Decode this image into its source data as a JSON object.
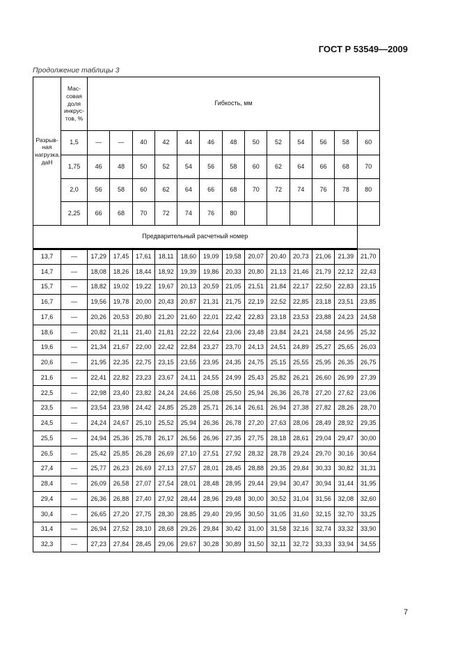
{
  "document_id": "ГОСТ Р 53549—2009",
  "caption": "Продолжение таблицы 3",
  "page_number": "7",
  "table": {
    "row_header": "Разрыв-ная нагрузка, даН",
    "mass_fraction_header": "Мас-совая доля инкрус-тов, %",
    "flexibility_header": "Гибкость, мм",
    "estimate_header": "Предварительный расчетный номер",
    "flexibility_rows": [
      {
        "fraction": "1,5",
        "values": [
          "—",
          "—",
          "40",
          "42",
          "44",
          "46",
          "48",
          "50",
          "52",
          "54",
          "56",
          "58",
          "60"
        ]
      },
      {
        "fraction": "1,75",
        "values": [
          "46",
          "48",
          "50",
          "52",
          "54",
          "56",
          "58",
          "60",
          "62",
          "64",
          "66",
          "68",
          "70"
        ]
      },
      {
        "fraction": "2,0",
        "values": [
          "56",
          "58",
          "60",
          "62",
          "64",
          "66",
          "68",
          "70",
          "72",
          "74",
          "76",
          "78",
          "80"
        ]
      },
      {
        "fraction": "2,25",
        "values": [
          "66",
          "68",
          "70",
          "72",
          "74",
          "76",
          "80",
          "",
          "",
          "",
          "",
          "",
          ""
        ]
      }
    ],
    "rows": [
      {
        "load": "13,7",
        "frac": "—",
        "values": [
          "17,29",
          "17,45",
          "17,61",
          "18,11",
          "18,60",
          "19,09",
          "19,58",
          "20,07",
          "20,40",
          "20,73",
          "21,06",
          "21,39",
          "21,70"
        ]
      },
      {
        "load": "14,7",
        "frac": "—",
        "values": [
          "18,08",
          "18,26",
          "18,44",
          "18,92",
          "19,39",
          "19,86",
          "20,33",
          "20,80",
          "21,13",
          "21,46",
          "21,79",
          "22,12",
          "22,43"
        ]
      },
      {
        "load": "15,7",
        "frac": "—",
        "values": [
          "18,82",
          "19,02",
          "19,22",
          "19,67",
          "20,13",
          "20,59",
          "21,05",
          "21,51",
          "21,84",
          "22,17",
          "22,50",
          "22,83",
          "23,15"
        ]
      },
      {
        "load": "16,7",
        "frac": "—",
        "values": [
          "19,56",
          "19,78",
          "20,00",
          "20,43",
          "20,87",
          "21,31",
          "21,75",
          "22,19",
          "22,52",
          "22,85",
          "23,18",
          "23,51",
          "23,85"
        ]
      },
      {
        "load": "17,6",
        "frac": "—",
        "values": [
          "20,26",
          "20,53",
          "20,80",
          "21,20",
          "21,60",
          "22,01",
          "22,42",
          "22,83",
          "23,18",
          "23,53",
          "23,88",
          "24,23",
          "24,58"
        ]
      },
      {
        "load": "18,6",
        "frac": "—",
        "values": [
          "20,82",
          "21,11",
          "21,40",
          "21,81",
          "22,22",
          "22,64",
          "23,06",
          "23,48",
          "23,84",
          "24,21",
          "24,58",
          "24,95",
          "25,32"
        ]
      },
      {
        "load": "19,6",
        "frac": "—",
        "values": [
          "21,34",
          "21,67",
          "22,00",
          "22,42",
          "22,84",
          "23,27",
          "23,70",
          "24,13",
          "24,51",
          "24,89",
          "25,27",
          "25,65",
          "26,03"
        ]
      },
      {
        "load": "20,6",
        "frac": "—",
        "values": [
          "21,95",
          "22,35",
          "22,75",
          "23,15",
          "23,55",
          "23,95",
          "24,35",
          "24,75",
          "25,15",
          "25,55",
          "25,95",
          "26,35",
          "26,75"
        ]
      },
      {
        "load": "21,6",
        "frac": "—",
        "values": [
          "22,41",
          "22,82",
          "23,23",
          "23,67",
          "24,11",
          "24,55",
          "24,99",
          "25,43",
          "25,82",
          "26,21",
          "26,60",
          "26,99",
          "27,39"
        ]
      },
      {
        "load": "22,5",
        "frac": "—",
        "values": [
          "22,98",
          "23,40",
          "23,82",
          "24,24",
          "24,66",
          "25,08",
          "25,50",
          "25,94",
          "26,36",
          "26,78",
          "27,20",
          "27,62",
          "23,06"
        ]
      },
      {
        "load": "23,5",
        "frac": "—",
        "values": [
          "23,54",
          "23,98",
          "24,42",
          "24,85",
          "25,28",
          "25,71",
          "26,14",
          "26,61",
          "26,94",
          "27,38",
          "27,82",
          "28,26",
          "28,70"
        ]
      },
      {
        "load": "24,5",
        "frac": "—",
        "values": [
          "24,24",
          "24,67",
          "25,10",
          "25,52",
          "25,94",
          "26,36",
          "26,78",
          "27,20",
          "27,63",
          "28,06",
          "28,49",
          "28,92",
          "29,35"
        ]
      },
      {
        "load": "25,5",
        "frac": "—",
        "values": [
          "24,94",
          "25,36",
          "25,78",
          "26,17",
          "26,56",
          "26,96",
          "27,35",
          "27,75",
          "28,18",
          "28,61",
          "29,04",
          "29,47",
          "30,00"
        ]
      },
      {
        "load": "26,5",
        "frac": "—",
        "values": [
          "25,42",
          "25,85",
          "26,28",
          "26,69",
          "27,10",
          "27,51",
          "27,92",
          "28,32",
          "28,78",
          "29,24",
          "29,70",
          "30,16",
          "30,64"
        ]
      },
      {
        "load": "27,4",
        "frac": "—",
        "values": [
          "25,77",
          "26,23",
          "26,69",
          "27,13",
          "27,57",
          "28,01",
          "28,45",
          "28,88",
          "29,35",
          "29,84",
          "30,33",
          "30,82",
          "31,31"
        ]
      },
      {
        "load": "28,4",
        "frac": "—",
        "values": [
          "26,09",
          "26,58",
          "27,07",
          "27,54",
          "28,01",
          "28,48",
          "28,95",
          "29,44",
          "29,94",
          "30,47",
          "30,94",
          "31,44",
          "31,95"
        ]
      },
      {
        "load": "29,4",
        "frac": "—",
        "values": [
          "26,36",
          "26,88",
          "27,40",
          "27,92",
          "28,44",
          "28,96",
          "29,48",
          "30,00",
          "30,52",
          "31,04",
          "31,56",
          "32,08",
          "32,60"
        ]
      },
      {
        "load": "30,4",
        "frac": "—",
        "values": [
          "26,65",
          "27,20",
          "27,75",
          "28,30",
          "28,85",
          "29,40",
          "29,95",
          "30,50",
          "31,05",
          "31,60",
          "32,15",
          "32,70",
          "33,25"
        ]
      },
      {
        "load": "31,4",
        "frac": "—",
        "values": [
          "26,94",
          "27,52",
          "28,10",
          "28,68",
          "29,26",
          "29,84",
          "30,42",
          "31,00",
          "31,58",
          "32,16",
          "32,74",
          "33,32",
          "33,90"
        ]
      },
      {
        "load": "32,3",
        "frac": "—",
        "values": [
          "27,23",
          "27,84",
          "28,45",
          "29,06",
          "29,67",
          "30,28",
          "30,89",
          "31,50",
          "32,11",
          "32,72",
          "33,33",
          "33,94",
          "34,55"
        ]
      }
    ]
  }
}
